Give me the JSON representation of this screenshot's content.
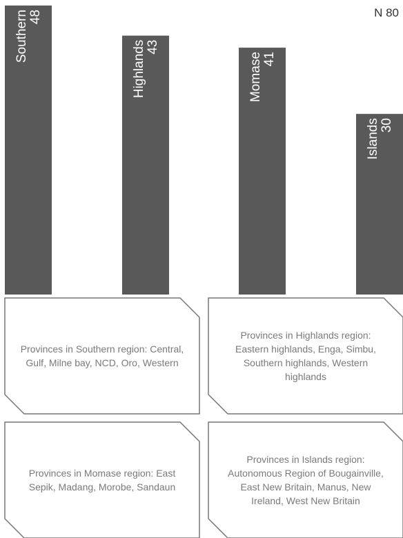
{
  "chart_data": {
    "type": "bar",
    "categories": [
      "Southern",
      "Highlands",
      "Momase",
      "Islands"
    ],
    "values": [
      48,
      43,
      41,
      30
    ],
    "color": "#595959",
    "annotation": "N 80"
  },
  "notes": [
    "Provinces in Southern region: Central, Gulf, Milne bay, NCD, Oro, Western",
    "Provinces in Highlands region: Eastern highlands, Enga, Simbu, Southern highlands, Western highlands",
    "Provinces in Momase region: East Sepik, Madang, Morobe, Sandaun",
    "Provinces in Islands region: Autonomous Region of Bougainville, East New Britain, Manus, New Ireland, West New Britain"
  ]
}
